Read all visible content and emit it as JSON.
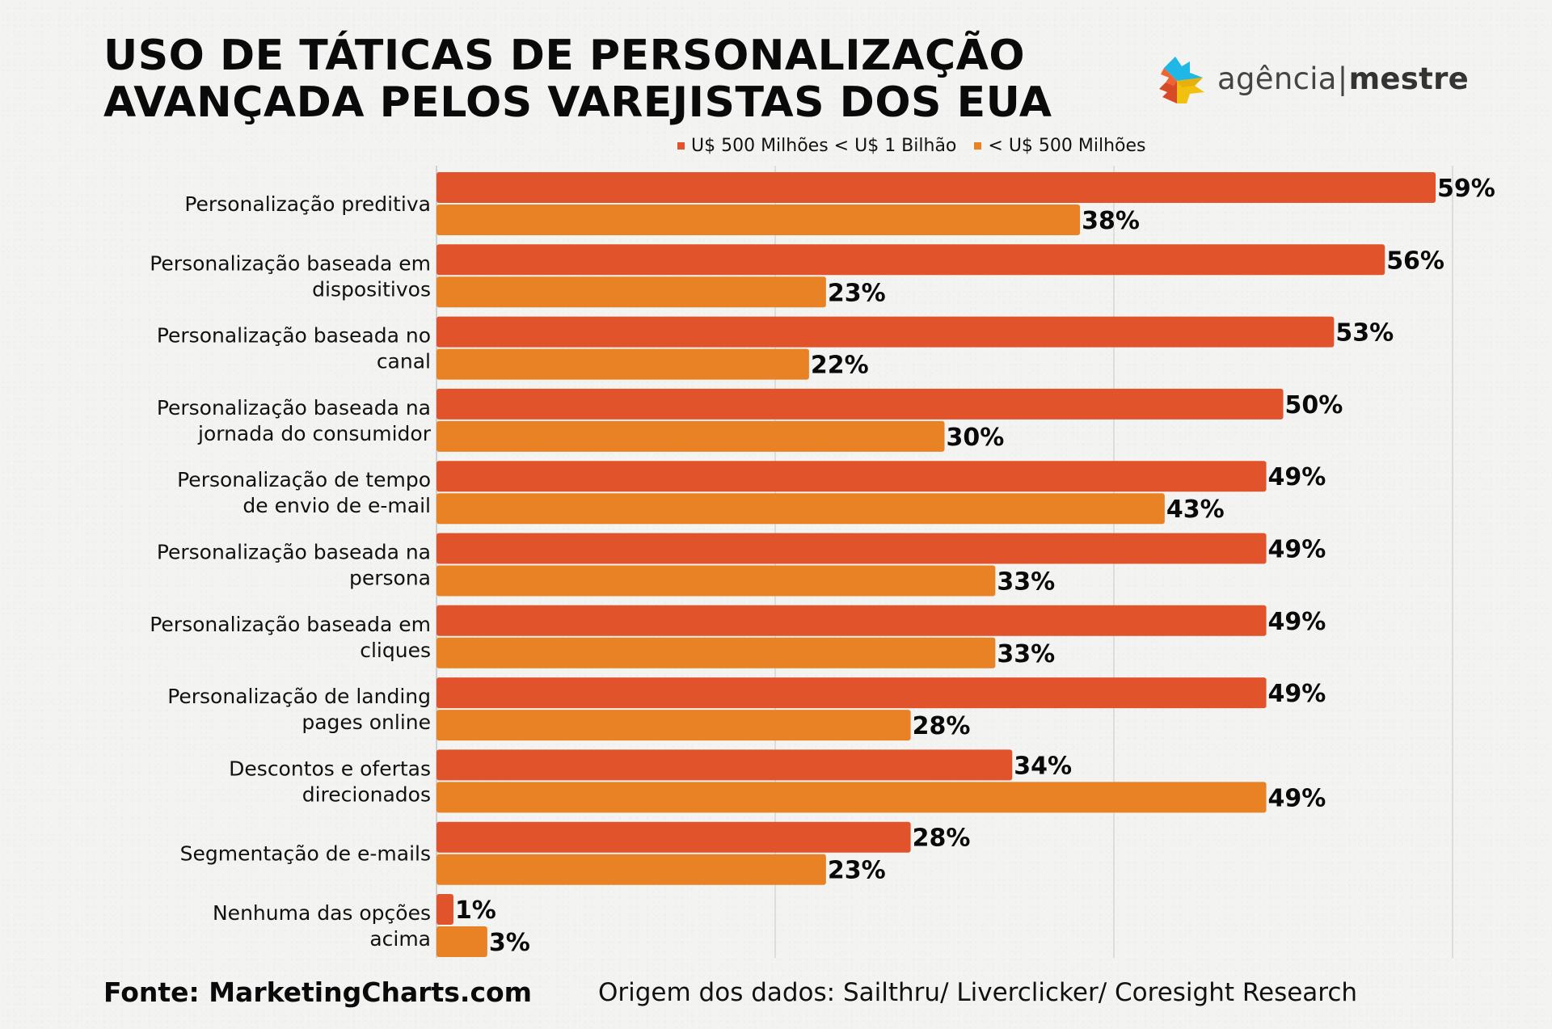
{
  "title": {
    "line1": "USO DE TÁTICAS DE PERSONALIZAÇÃO",
    "line2": "AVANÇADA PELOS VAREJISTAS DOS EUA"
  },
  "logo": {
    "icon": "agencia-mestre-star-logo",
    "text_light": "agência",
    "separator": "|",
    "text_bold": "mestre"
  },
  "footer": {
    "source": "Fonte: MarketingCharts.com",
    "data_origin": "Origem dos dados: Sailthru/ Liverclicker/ Coresight Research"
  },
  "chart_data": {
    "type": "bar",
    "orientation": "horizontal",
    "title": "USO DE TÁTICAS DE PERSONALIZAÇÃO AVANÇADA PELOS VAREJISTAS DOS EUA",
    "xlabel": "",
    "ylabel": "",
    "xlim": [
      0,
      60
    ],
    "grid": true,
    "gridlines_at": [
      20,
      40,
      60
    ],
    "legend_position": "top",
    "value_suffix": "%",
    "categories": [
      [
        "Personalização preditiva"
      ],
      [
        "Personalização baseada em",
        "dispositivos"
      ],
      [
        "Personalização baseada no",
        "canal"
      ],
      [
        "Personalização baseada na",
        "jornada do consumidor"
      ],
      [
        "Personalização de tempo",
        "de envio de e-mail"
      ],
      [
        "Personalização baseada na",
        "persona"
      ],
      [
        "Personalização baseada em",
        "cliques"
      ],
      [
        "Personalização de landing",
        "pages online"
      ],
      [
        "Descontos e ofertas",
        "direcionados"
      ],
      [
        "Segmentação de e-mails"
      ],
      [
        "Nenhuma das opções",
        "acima"
      ]
    ],
    "series": [
      {
        "name": "U$ 500 Milhões < U$ 1 Bilhão",
        "color": "#E0532B",
        "values": [
          59,
          56,
          53,
          50,
          49,
          49,
          49,
          49,
          34,
          28,
          1
        ]
      },
      {
        "name": "< U$ 500 Milhões",
        "color": "#E88224",
        "values": [
          38,
          23,
          22,
          30,
          43,
          33,
          33,
          28,
          49,
          23,
          3
        ]
      }
    ]
  }
}
